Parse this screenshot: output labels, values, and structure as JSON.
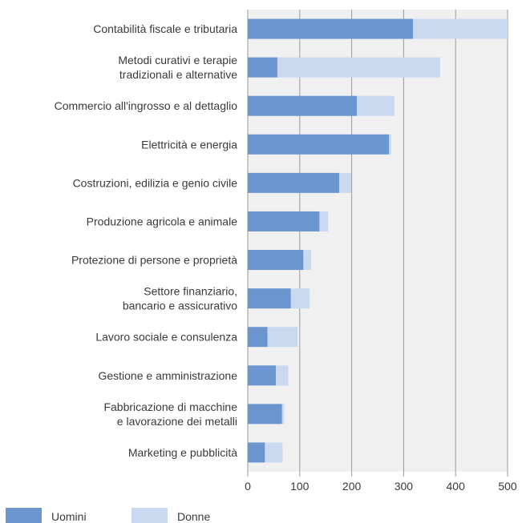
{
  "chart_data": {
    "type": "bar",
    "orientation": "horizontal",
    "stacked": true,
    "categories": [
      [
        "Contabilità fiscale e tributaria"
      ],
      [
        "Metodi curativi e terapie",
        "tradizionali e alternative"
      ],
      [
        "Commercio all'ingrosso e al dettaglio"
      ],
      [
        "Elettricità e energia"
      ],
      [
        "Costruzioni, edilizia e genio civile"
      ],
      [
        "Produzione agricola e animale"
      ],
      [
        "Protezione di persone e proprietà"
      ],
      [
        "Settore finanziario,",
        "bancario e assicurativo"
      ],
      [
        "Lavoro sociale e consulenza"
      ],
      [
        "Gestione e amministrazione"
      ],
      [
        "Fabbricazione di macchine",
        "e lavorazione dei metalli"
      ],
      [
        "Marketing e pubblicità"
      ]
    ],
    "series": [
      {
        "name": "Uomini",
        "color": "#6a95cf",
        "values": [
          318,
          57,
          210,
          272,
          176,
          138,
          107,
          83,
          38,
          54,
          66,
          33
        ]
      },
      {
        "name": "Donne",
        "color": "#cad9f0",
        "values": [
          182,
          313,
          72,
          4,
          23,
          17,
          15,
          36,
          58,
          24,
          4,
          34
        ]
      }
    ],
    "xlim": [
      0,
      500
    ],
    "xticks": [
      0,
      100,
      200,
      300,
      400,
      500
    ],
    "grid": true,
    "legend_position": "bottom-left",
    "plot_background": "#f0f0f0",
    "gridline_color": "#9a9a9a"
  }
}
